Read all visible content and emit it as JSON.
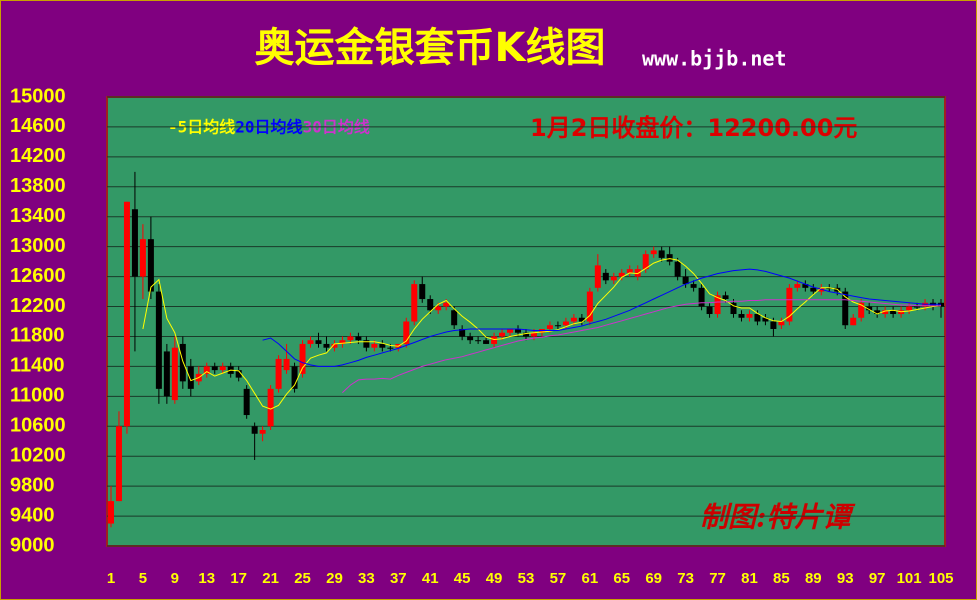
{
  "chart_data": {
    "type": "candlestick",
    "title": "奥运金银套币K线图",
    "source": "www.bjjb.net",
    "annotation": "1月2日收盘价：12200.00元",
    "credit": "制图:特片谭",
    "up_color": "#ff0000",
    "down_color": "#000000",
    "x": [
      1,
      2,
      3,
      4,
      5,
      6,
      7,
      8,
      9,
      10,
      11,
      12,
      13,
      14,
      15,
      16,
      17,
      18,
      19,
      20,
      21,
      22,
      23,
      24,
      25,
      26,
      27,
      28,
      29,
      30,
      31,
      32,
      33,
      34,
      35,
      36,
      37,
      38,
      39,
      40,
      41,
      42,
      43,
      44,
      45,
      46,
      47,
      48,
      49,
      50,
      51,
      52,
      53,
      54,
      55,
      56,
      57,
      58,
      59,
      60,
      61,
      62,
      63,
      64,
      65,
      66,
      67,
      68,
      69,
      70,
      71,
      72,
      73,
      74,
      75,
      76,
      77,
      78,
      79,
      80,
      81,
      82,
      83,
      84,
      85,
      86,
      87,
      88,
      89,
      90,
      91,
      92,
      93,
      94,
      95,
      96,
      97,
      98,
      99,
      100,
      101,
      102,
      103,
      104,
      105
    ],
    "open": [
      9300,
      9600,
      10600,
      13500,
      12600,
      13100,
      12400,
      11600,
      10950,
      11700,
      11400,
      11200,
      11300,
      11400,
      11350,
      11400,
      11350,
      11100,
      10600,
      10500,
      10600,
      11100,
      11350,
      11400,
      11300,
      11700,
      11750,
      11700,
      11650,
      11700,
      11750,
      11800,
      11750,
      11650,
      11700,
      11650,
      11650,
      11700,
      12000,
      12500,
      12300,
      12150,
      12200,
      12150,
      11900,
      11800,
      11750,
      11750,
      11700,
      11800,
      11850,
      11900,
      11850,
      11800,
      11850,
      11900,
      11950,
      11950,
      12000,
      12050,
      12000,
      12450,
      12650,
      12550,
      12600,
      12650,
      12600,
      12700,
      12900,
      12950,
      12900,
      12800,
      12600,
      12500,
      12450,
      12200,
      12100,
      12350,
      12250,
      12100,
      12050,
      12100,
      12050,
      12000,
      11950,
      12000,
      12450,
      12500,
      12450,
      12400,
      12450,
      12450,
      12400,
      11950,
      12050,
      12200,
      12150,
      12100,
      12150,
      12100,
      12150,
      12200,
      12200,
      12250,
      12250
    ],
    "high": [
      9800,
      10800,
      13600,
      14000,
      13300,
      13400,
      12500,
      11700,
      11800,
      11800,
      11500,
      11400,
      11450,
      11450,
      11450,
      11450,
      11400,
      11150,
      10650,
      10600,
      11150,
      11550,
      11700,
      11450,
      11750,
      11800,
      11850,
      11800,
      11750,
      11800,
      11850,
      11850,
      11800,
      11750,
      11750,
      11700,
      11700,
      12050,
      12550,
      12600,
      12350,
      12250,
      12300,
      12200,
      11950,
      11850,
      11800,
      11800,
      11850,
      11900,
      11900,
      11950,
      11900,
      11900,
      11900,
      12000,
      12000,
      12050,
      12100,
      12100,
      12450,
      12900,
      12700,
      12650,
      12700,
      12750,
      12750,
      12950,
      13000,
      13000,
      13000,
      12850,
      12700,
      12550,
      12500,
      12250,
      12400,
      12400,
      12300,
      12150,
      12150,
      12150,
      12100,
      12050,
      12050,
      12500,
      12550,
      12550,
      12500,
      12500,
      12500,
      12500,
      12450,
      12100,
      12300,
      12250,
      12200,
      12200,
      12200,
      12200,
      12250,
      12250,
      12300,
      12300,
      12300
    ],
    "low": [
      9250,
      9600,
      10500,
      11600,
      12300,
      12300,
      10900,
      10900,
      10900,
      11100,
      11000,
      11150,
      11250,
      11300,
      11300,
      11250,
      11200,
      10700,
      10150,
      10400,
      10550,
      11050,
      11300,
      11050,
      11250,
      11650,
      11650,
      11600,
      11600,
      11650,
      11700,
      11700,
      11600,
      11600,
      11600,
      11600,
      11600,
      11650,
      11950,
      12250,
      12100,
      12100,
      12150,
      11900,
      11750,
      11700,
      11700,
      11700,
      11650,
      11750,
      11800,
      11800,
      11750,
      11750,
      11800,
      11850,
      11900,
      11900,
      11950,
      11950,
      11950,
      12400,
      12500,
      12500,
      12550,
      12600,
      12550,
      12650,
      12850,
      12800,
      12750,
      12550,
      12450,
      12400,
      12150,
      12050,
      12050,
      12250,
      12050,
      12000,
      12000,
      11950,
      11950,
      11800,
      11900,
      11950,
      12400,
      12400,
      12350,
      12350,
      12400,
      12350,
      11900,
      11950,
      12000,
      12100,
      12050,
      12050,
      12050,
      12050,
      12100,
      12150,
      12150,
      12150,
      12050
    ],
    "close": [
      9600,
      10600,
      13600,
      12600,
      13100,
      12400,
      11100,
      11000,
      11650,
      11200,
      11100,
      11300,
      11400,
      11350,
      11400,
      11300,
      11250,
      10750,
      10500,
      10550,
      11100,
      11500,
      11500,
      11100,
      11700,
      11750,
      11700,
      11650,
      11700,
      11750,
      11800,
      11750,
      11650,
      11700,
      11650,
      11650,
      11700,
      12000,
      12500,
      12300,
      12150,
      12200,
      12250,
      11950,
      11800,
      11750,
      11750,
      11700,
      11800,
      11850,
      11900,
      11850,
      11800,
      11850,
      11900,
      11950,
      11950,
      12000,
      12050,
      12000,
      12400,
      12750,
      12550,
      12600,
      12650,
      12700,
      12700,
      12900,
      12950,
      12850,
      12800,
      12600,
      12500,
      12450,
      12200,
      12100,
      12350,
      12300,
      12100,
      12050,
      12100,
      12000,
      12000,
      11900,
      12000,
      12450,
      12500,
      12450,
      12400,
      12450,
      12450,
      12400,
      11950,
      12050,
      12250,
      12150,
      12100,
      12150,
      12100,
      12150,
      12200,
      12200,
      12250,
      12200,
      12200
    ],
    "series": [
      {
        "name": "-5日均线",
        "color": "#ffff00",
        "values": [
          null,
          null,
          null,
          null,
          11900,
          12460,
          12560,
          12040,
          11850,
          11470,
          11210,
          11250,
          11330,
          11270,
          11310,
          11350,
          11340,
          11210,
          11040,
          10870,
          10830,
          10880,
          11030,
          11150,
          11380,
          11510,
          11550,
          11580,
          11700,
          11710,
          11720,
          11730,
          11730,
          11730,
          11710,
          11680,
          11670,
          11740,
          11900,
          12030,
          12130,
          12230,
          12280,
          12170,
          12070,
          11990,
          11900,
          11790,
          11760,
          11770,
          11800,
          11820,
          11840,
          11850,
          11860,
          11870,
          11890,
          11930,
          11970,
          11990,
          12080,
          12240,
          12350,
          12460,
          12590,
          12650,
          12640,
          12710,
          12780,
          12820,
          12840,
          12820,
          12740,
          12640,
          12510,
          12370,
          12320,
          12280,
          12210,
          12180,
          12180,
          12110,
          12050,
          12010,
          12000,
          12070,
          12170,
          12260,
          12360,
          12450,
          12450,
          12430,
          12330,
          12260,
          12220,
          12160,
          12100,
          12140,
          12150,
          12130,
          12140,
          12160,
          12180,
          12200,
          12210
        ]
      },
      {
        "name": "20日均线",
        "color": "#0000ff",
        "values": [
          null,
          null,
          null,
          null,
          null,
          null,
          null,
          null,
          null,
          null,
          null,
          null,
          null,
          null,
          null,
          null,
          null,
          null,
          null,
          11750,
          11780,
          11700,
          11600,
          11500,
          11450,
          11420,
          11400,
          11400,
          11400,
          11420,
          11450,
          11480,
          11520,
          11550,
          11580,
          11610,
          11640,
          11680,
          11720,
          11760,
          11800,
          11830,
          11860,
          11880,
          11890,
          11900,
          11900,
          11900,
          11900,
          11900,
          11900,
          11900,
          11890,
          11880,
          11880,
          11880,
          11880,
          11900,
          11920,
          11940,
          11970,
          12000,
          12030,
          12070,
          12110,
          12150,
          12200,
          12250,
          12300,
          12350,
          12400,
          12450,
          12500,
          12540,
          12580,
          12610,
          12640,
          12660,
          12680,
          12690,
          12700,
          12690,
          12670,
          12640,
          12610,
          12580,
          12540,
          12500,
          12460,
          12430,
          12400,
          12380,
          12360,
          12340,
          12320,
          12300,
          12290,
          12280,
          12270,
          12260,
          12250,
          12240,
          12230,
          12230,
          12230
        ]
      },
      {
        "name": "30日均线",
        "color": "#cc33cc",
        "values": [
          null,
          null,
          null,
          null,
          null,
          null,
          null,
          null,
          null,
          null,
          null,
          null,
          null,
          null,
          null,
          null,
          null,
          null,
          null,
          null,
          null,
          null,
          null,
          null,
          null,
          null,
          null,
          null,
          null,
          11050,
          11150,
          11220,
          11230,
          11230,
          11240,
          11230,
          11280,
          11320,
          11360,
          11400,
          11430,
          11460,
          11490,
          11510,
          11530,
          11560,
          11590,
          11620,
          11650,
          11680,
          11710,
          11740,
          11760,
          11780,
          11790,
          11810,
          11820,
          11840,
          11860,
          11880,
          11900,
          11920,
          11950,
          11980,
          12010,
          12040,
          12070,
          12100,
          12130,
          12160,
          12190,
          12210,
          12230,
          12240,
          12250,
          12250,
          12260,
          12260,
          12270,
          12270,
          12280,
          12280,
          12290,
          12290,
          12290,
          12290,
          12290,
          12290,
          12290,
          12290,
          12290,
          12290,
          12290,
          12280,
          12270,
          12260,
          12250,
          12240,
          12230,
          12220,
          12220,
          12210,
          12210,
          12210,
          12210
        ]
      }
    ],
    "xlim": [
      0.5,
      105.5
    ],
    "xticks": [
      1,
      5,
      9,
      13,
      17,
      21,
      25,
      29,
      33,
      37,
      41,
      45,
      49,
      53,
      57,
      61,
      65,
      69,
      73,
      77,
      81,
      85,
      89,
      93,
      97,
      101,
      105
    ],
    "ylim": [
      9000,
      15000
    ],
    "yticks": [
      9000,
      9400,
      9800,
      10200,
      10600,
      11000,
      11400,
      11800,
      12200,
      12600,
      13000,
      13400,
      13800,
      14200,
      14600,
      15000
    ],
    "grid": true
  }
}
